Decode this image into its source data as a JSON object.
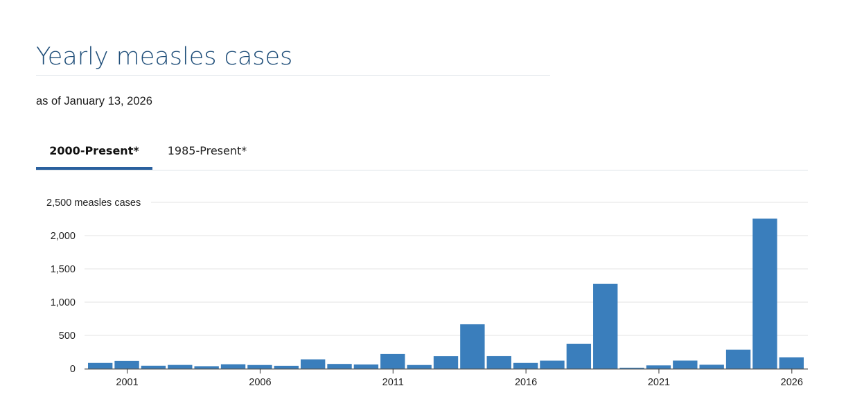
{
  "header": {
    "title": "Yearly measles cases",
    "subtitle": "as of January 13, 2026"
  },
  "tabs": [
    {
      "label": "2000-Present*",
      "active": true
    },
    {
      "label": "1985-Present*",
      "active": false
    }
  ],
  "colors": {
    "bar": "#3a7ebc",
    "title": "#1f4e79",
    "tab_indicator": "#2a609e",
    "gridline": "#e3e3e3",
    "axis": "#555555"
  },
  "chart_data": {
    "type": "bar",
    "title": "Yearly measles cases",
    "subtitle": "as of January 13, 2026",
    "xlabel": "",
    "ylabel": "measles cases",
    "y_unit_label": "2,500 measles cases",
    "ylim": [
      0,
      2500
    ],
    "yticks": [
      0,
      500,
      1000,
      1500,
      2000,
      2500
    ],
    "ytick_labels": [
      "0",
      "500",
      "1,000",
      "1,500",
      "2,000",
      "2,500 measles cases"
    ],
    "xtick_labels": [
      "2001",
      "2006",
      "2011",
      "2016",
      "2021",
      "2026"
    ],
    "grid": true,
    "legend": "none",
    "categories": [
      "2000",
      "2001",
      "2002",
      "2003",
      "2004",
      "2005",
      "2006",
      "2007",
      "2008",
      "2009",
      "2010",
      "2011",
      "2012",
      "2013",
      "2014",
      "2015",
      "2016",
      "2017",
      "2018",
      "2019",
      "2020",
      "2021",
      "2022",
      "2023",
      "2024",
      "2025",
      "2026"
    ],
    "values": [
      86,
      116,
      44,
      56,
      37,
      66,
      55,
      43,
      140,
      71,
      63,
      220,
      55,
      187,
      667,
      188,
      86,
      120,
      375,
      1274,
      13,
      49,
      121,
      59,
      285,
      2255,
      171
    ]
  }
}
